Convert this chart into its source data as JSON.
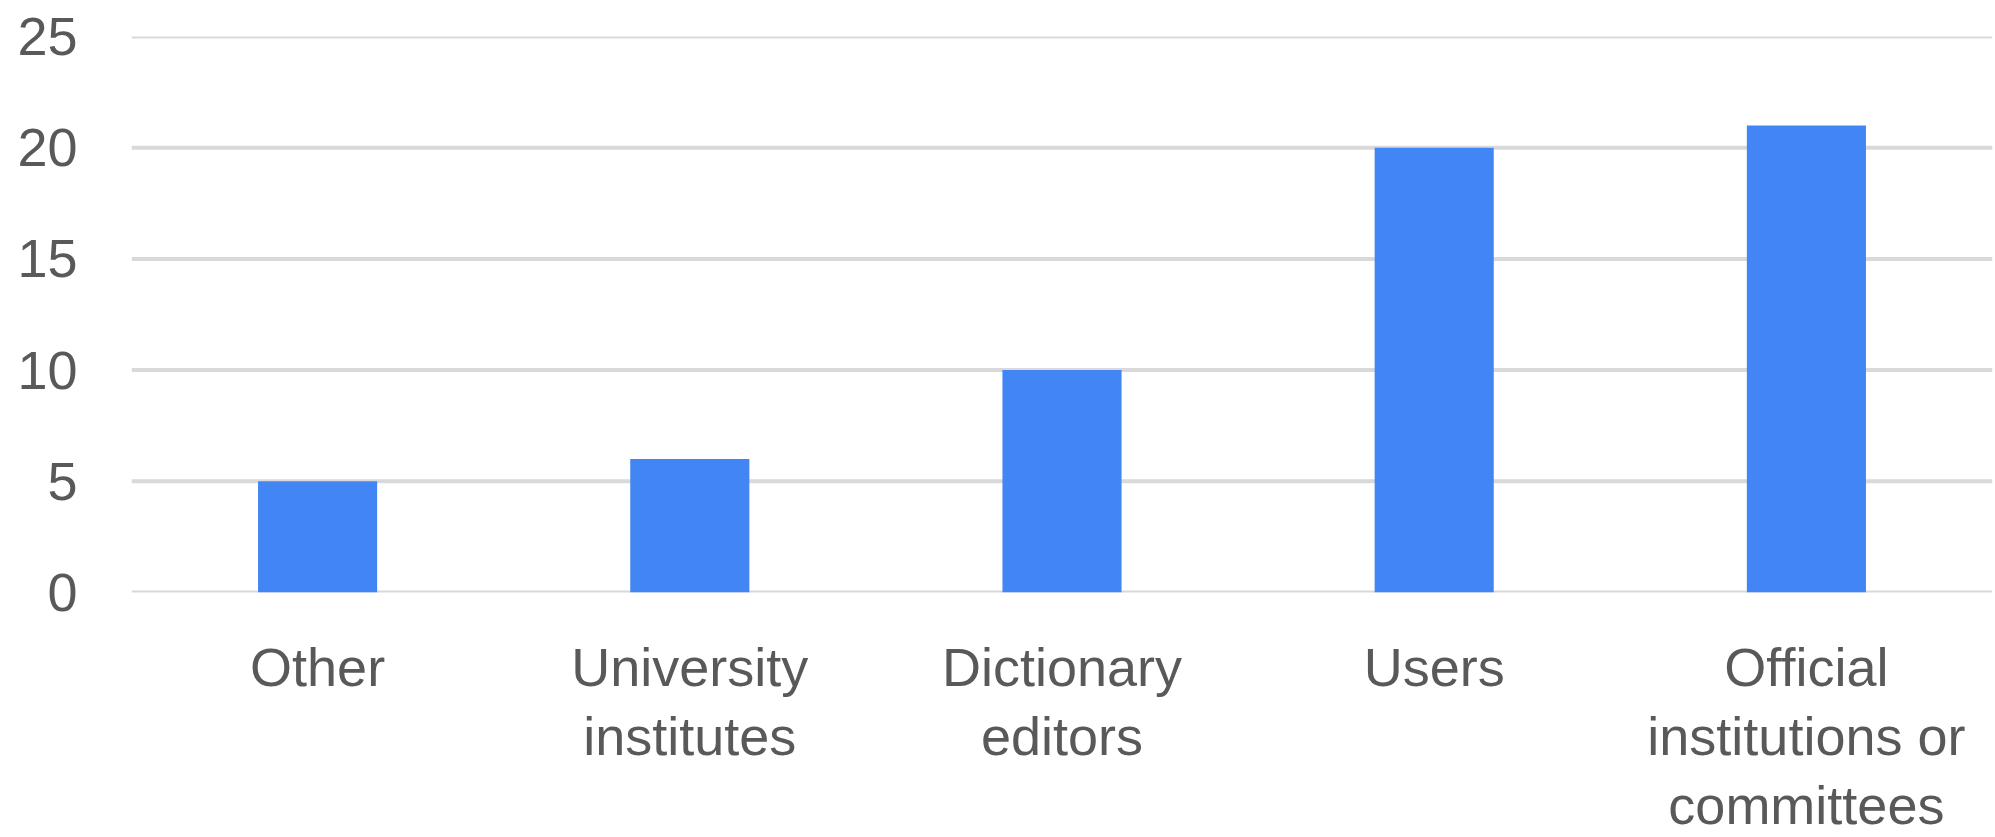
{
  "chart_data": {
    "type": "bar",
    "categories": [
      "Other",
      "University institutes",
      "Dictionary editors",
      "Users",
      "Official institutions or committees"
    ],
    "values": [
      5,
      6,
      10,
      20,
      21
    ],
    "color": "#4285f4",
    "ylim": [
      0,
      25
    ],
    "yticks": [
      0,
      5,
      10,
      15,
      20,
      25
    ],
    "grid": "y"
  }
}
